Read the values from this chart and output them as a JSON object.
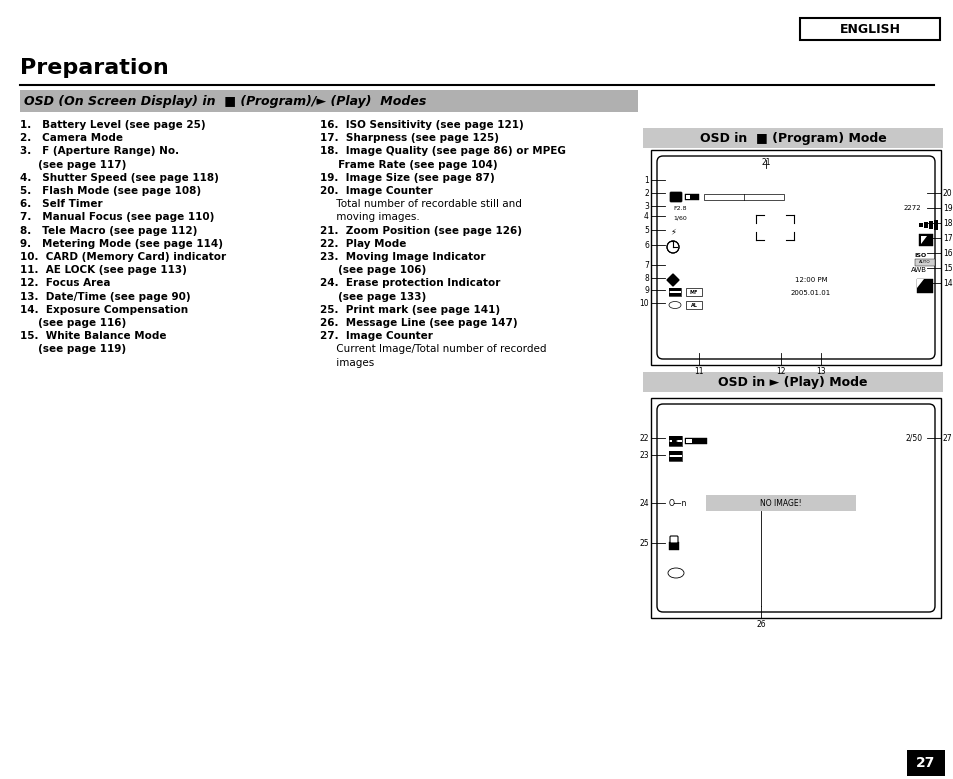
{
  "title": "Preparation",
  "english_label": "ENGLISH",
  "bg_color": "#ffffff",
  "section_bg": "#b0b0b0",
  "osd_program_title": "OSD in  ■ (Program) Mode",
  "osd_play_title": "OSD in ► (Play) Mode",
  "page_number": "27",
  "left_lines": [
    [
      "1.   Battery Level (see page 25)",
      true
    ],
    [
      "2.   Camera Mode",
      true
    ],
    [
      "3.   F (Aperture Range) No.",
      true
    ],
    [
      "     (see page 117)",
      true
    ],
    [
      "4.   Shutter Speed (see page 118)",
      true
    ],
    [
      "5.   Flash Mode (see page 108)",
      true
    ],
    [
      "6.   Self Timer",
      true
    ],
    [
      "7.   Manual Focus (see page 110)",
      true
    ],
    [
      "8.   Tele Macro (see page 112)",
      true
    ],
    [
      "9.   Metering Mode (see page 114)",
      true
    ],
    [
      "10.  CARD (Memory Card) indicator",
      true
    ],
    [
      "11.  AE LOCK (see page 113)",
      true
    ],
    [
      "12.  Focus Area",
      true
    ],
    [
      "13.  Date/Time (see page 90)",
      true
    ],
    [
      "14.  Exposure Compensation",
      true
    ],
    [
      "     (see page 116)",
      true
    ],
    [
      "15.  White Balance Mode",
      true
    ],
    [
      "     (see page 119)",
      true
    ]
  ],
  "right_lines": [
    [
      "16.  ISO Sensitivity (see page 121)",
      true
    ],
    [
      "17.  Sharpness (see page 125)",
      true
    ],
    [
      "18.  Image Quality (see page 86) or MPEG",
      true
    ],
    [
      "     Frame Rate (see page 104)",
      true
    ],
    [
      "19.  Image Size (see page 87)",
      true
    ],
    [
      "20.  Image Counter",
      true
    ],
    [
      "     Total number of recordable still and",
      false
    ],
    [
      "     moving images.",
      false
    ],
    [
      "21.  Zoom Position (see page 126)",
      true
    ],
    [
      "22.  Play Mode",
      true
    ],
    [
      "23.  Moving Image Indicator",
      true
    ],
    [
      "     (see page 106)",
      true
    ],
    [
      "24.  Erase protection Indicator",
      true
    ],
    [
      "     (see page 133)",
      true
    ],
    [
      "25.  Print mark (see page 141)",
      true
    ],
    [
      "26.  Message Line (see page 147)",
      true
    ],
    [
      "27.  Image Counter",
      true
    ],
    [
      "     Current Image/Total number of recorded",
      false
    ],
    [
      "     images",
      false
    ]
  ]
}
